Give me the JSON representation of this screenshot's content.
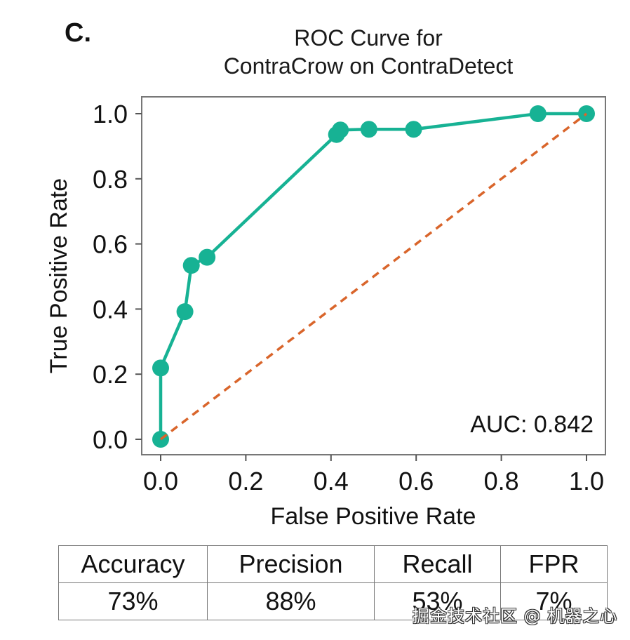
{
  "panel_label": "C.",
  "chart_data": {
    "type": "line",
    "title": [
      "ROC Curve for",
      "ContraCrow on ContraDetect"
    ],
    "xlabel": "False Positive Rate",
    "ylabel": "True Positive Rate",
    "xlim": [
      -0.04,
      1.04
    ],
    "ylim": [
      -0.05,
      1.05
    ],
    "xticks": [
      0.0,
      0.2,
      0.4,
      0.6,
      0.8,
      1.0
    ],
    "xtick_labels": [
      "0.0",
      "0.2",
      "0.4",
      "0.6",
      "0.8",
      "1.0"
    ],
    "yticks": [
      0.0,
      0.2,
      0.4,
      0.6,
      0.8,
      1.0
    ],
    "ytick_labels": [
      "0.0",
      "0.2",
      "0.4",
      "0.6",
      "0.8",
      "1.0"
    ],
    "grid": false,
    "series": [
      {
        "name": "ROC",
        "color": "#17b294",
        "style": "solid-with-markers",
        "x": [
          0.0,
          0.0,
          0.057,
          0.072,
          0.109,
          0.413,
          0.422,
          0.489,
          0.594,
          0.886,
          1.0
        ],
        "y": [
          0.0,
          0.219,
          0.392,
          0.534,
          0.559,
          0.936,
          0.95,
          0.952,
          0.952,
          1.0,
          1.0
        ]
      },
      {
        "name": "Chance",
        "color": "#d9652b",
        "style": "dashed",
        "x": [
          0.0,
          1.0
        ],
        "y": [
          0.0,
          1.0
        ]
      }
    ],
    "annotations": [
      {
        "text": "AUC: 0.842",
        "position": "bottom-right"
      }
    ]
  },
  "metrics_table": {
    "headers": [
      "Accuracy",
      "Precision",
      "Recall",
      "FPR"
    ],
    "values": [
      "73%",
      "88%",
      "53%",
      "7%"
    ]
  },
  "watermark": "掘金技术社区 @ 机器之心"
}
